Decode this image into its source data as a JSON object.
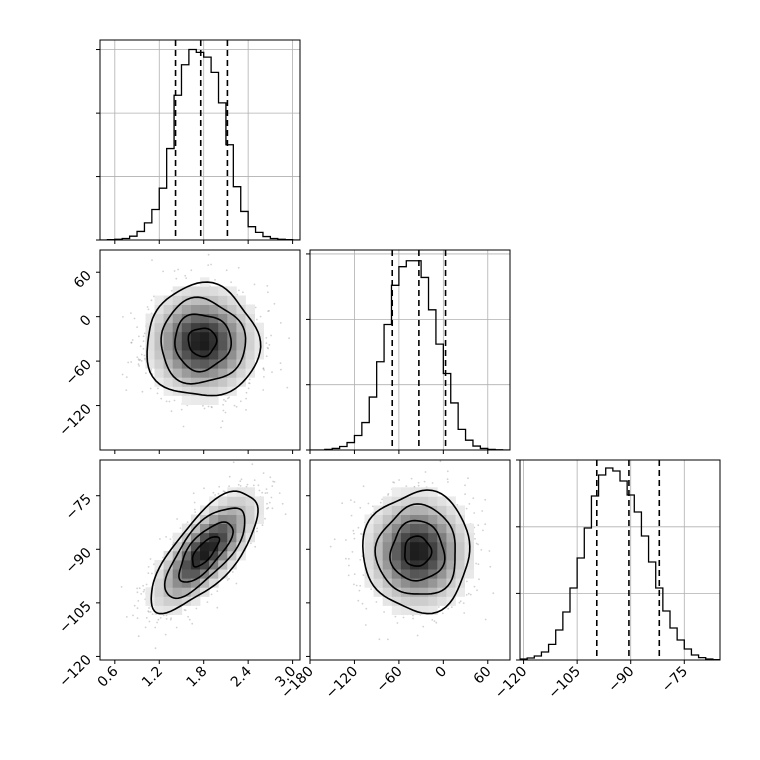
{
  "chart_data": {
    "type": "corner",
    "parameters": [
      {
        "name": "",
        "range": [
          0.4,
          3.1
        ],
        "ticks": [
          0.6,
          1.2,
          1.8,
          2.4,
          3.0
        ],
        "tick_labels": [
          "0.6",
          "1.2",
          "1.8",
          "2.4",
          "3.0"
        ],
        "quantiles": [
          1.42,
          1.76,
          2.12
        ],
        "hist_edges": [
          0.4,
          0.5,
          0.6,
          0.7,
          0.8,
          0.9,
          1.0,
          1.1,
          1.2,
          1.3,
          1.4,
          1.5,
          1.6,
          1.7,
          1.8,
          1.9,
          2.0,
          2.1,
          2.2,
          2.3,
          2.4,
          2.5,
          2.6,
          2.7,
          2.8,
          2.9,
          3.0,
          3.1
        ],
        "hist_counts": [
          0,
          2,
          4,
          8,
          20,
          45,
          90,
          160,
          272,
          480,
          760,
          920,
          1000,
          985,
          960,
          880,
          720,
          500,
          280,
          150,
          70,
          40,
          18,
          8,
          4,
          2,
          0
        ],
        "hist_ylim": [
          0,
          1050
        ],
        "hist_yticks": [
          0,
          333,
          666,
          1000
        ]
      },
      {
        "name": "",
        "range": [
          -180,
          90
        ],
        "ticks": [
          -180,
          -120,
          -60,
          0,
          60
        ],
        "tick_labels": [
          "−180",
          "−120",
          "−60",
          "0",
          "60"
        ],
        "quantiles": [
          -69,
          -33,
          3
        ],
        "hist_edges": [
          -180,
          -170,
          -160,
          -150,
          -140,
          -130,
          -120,
          -110,
          -100,
          -90,
          -80,
          -70,
          -60,
          -50,
          -40,
          -30,
          -20,
          -10,
          0,
          10,
          20,
          30,
          40,
          50,
          60,
          70,
          80,
          90
        ],
        "hist_counts": [
          0,
          0,
          3,
          8,
          18,
          38,
          74,
          140,
          270,
          450,
          640,
          840,
          935,
          965,
          965,
          880,
          715,
          540,
          390,
          240,
          105,
          50,
          20,
          8,
          3,
          1,
          0
        ],
        "hist_ylim": [
          0,
          1020
        ],
        "hist_yticks": [
          0,
          333,
          666,
          1000
        ]
      },
      {
        "name": "",
        "range": [
          -121,
          -65
        ],
        "ticks": [
          -120,
          -105,
          -90,
          -75
        ],
        "tick_labels": [
          "−120",
          "−105",
          "−90",
          "−75"
        ],
        "quantiles": [
          -99.5,
          -90.5,
          -82
        ],
        "hist_edges": [
          -121,
          -119,
          -117,
          -115,
          -113,
          -111,
          -109,
          -107,
          -105,
          -103,
          -101,
          -99,
          -97,
          -95,
          -93,
          -91,
          -89,
          -87,
          -85,
          -83,
          -81,
          -79,
          -77,
          -75,
          -73,
          -71,
          -69,
          -67,
          -65
        ],
        "hist_counts": [
          5,
          10,
          20,
          40,
          78,
          150,
          240,
          360,
          510,
          660,
          820,
          925,
          960,
          945,
          895,
          825,
          740,
          620,
          490,
          360,
          245,
          160,
          100,
          55,
          25,
          12,
          5,
          2
        ],
        "hist_ylim": [
          0,
          1000
        ],
        "hist_yticks": [
          0,
          333,
          666,
          1000
        ]
      }
    ],
    "pairs": [
      {
        "x_param": 0,
        "y_param": 1,
        "x_range": [
          0.4,
          3.1
        ],
        "y_range": [
          -180,
          90
        ],
        "x_ticks": [
          0.6,
          1.2,
          1.8,
          2.4,
          3.0
        ],
        "y_ticks": [
          -120,
          -60,
          0,
          60
        ],
        "y_tick_labels": [
          "−120",
          "−60",
          "0",
          "60"
        ],
        "center": [
          1.78,
          -34
        ],
        "sigma": [
          0.38,
          38
        ],
        "rho": 0.0,
        "seed": 11
      },
      {
        "x_param": 0,
        "y_param": 2,
        "x_range": [
          0.4,
          3.1
        ],
        "y_range": [
          -121,
          -65
        ],
        "x_ticks": [
          0.6,
          1.2,
          1.8,
          2.4,
          3.0
        ],
        "x_tick_labels": [
          "0.6",
          "1.2",
          "1.8",
          "2.4",
          "3.0"
        ],
        "y_ticks": [
          -120,
          -105,
          -90,
          -75
        ],
        "y_tick_labels": [
          "−120",
          "−105",
          "−90",
          "−75"
        ],
        "center": [
          1.82,
          -90.6
        ],
        "sigma": [
          0.36,
          8.4
        ],
        "rho": 0.72,
        "seed": 23
      },
      {
        "x_param": 1,
        "y_param": 2,
        "x_range": [
          -180,
          90
        ],
        "y_range": [
          -121,
          -65
        ],
        "x_ticks": [
          -180,
          -120,
          -60,
          0,
          60
        ],
        "x_tick_labels": [
          "−180",
          "−120",
          "−60",
          "0",
          "60"
        ],
        "y_ticks": [
          -120,
          -105,
          -90,
          -75
        ],
        "center": [
          -35,
          -90.6
        ],
        "sigma": [
          36,
          8.4
        ],
        "rho": 0.0,
        "seed": 37
      }
    ],
    "contour_levels_sigma": [
      0.5,
      1.0,
      1.5,
      2.0
    ],
    "colors": {
      "ink": "#000000",
      "grid": "#b0b0b0",
      "points": "#9a9a9a"
    }
  }
}
